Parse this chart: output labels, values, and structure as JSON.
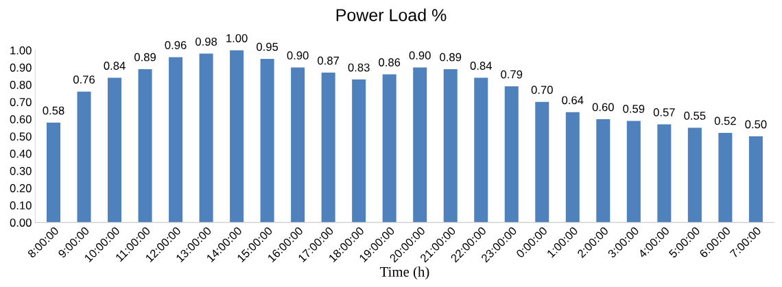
{
  "chart_data": {
    "type": "bar",
    "title": "Power Load %",
    "xlabel": "Time (h)",
    "categories": [
      "8:00:00",
      "9:00:00",
      "10:00:00",
      "11:00:00",
      "12:00:00",
      "13:00:00",
      "14:00:00",
      "15:00:00",
      "16:00:00",
      "17:00:00",
      "18:00:00",
      "19:00:00",
      "20:00:00",
      "21:00:00",
      "22:00:00",
      "23:00:00",
      "0:00:00",
      "1:00:00",
      "2:00:00",
      "3:00:00",
      "4:00:00",
      "5:00:00",
      "6:00:00",
      "7:00:00"
    ],
    "values": [
      0.58,
      0.76,
      0.84,
      0.89,
      0.96,
      0.98,
      1.0,
      0.95,
      0.9,
      0.87,
      0.83,
      0.86,
      0.9,
      0.89,
      0.84,
      0.79,
      0.7,
      0.64,
      0.6,
      0.59,
      0.57,
      0.55,
      0.52,
      0.5
    ],
    "value_labels": [
      "0.58",
      "0.76",
      "0.84",
      "0.89",
      "0.96",
      "0.98",
      "1.00",
      "0.95",
      "0.90",
      "0.87",
      "0.83",
      "0.86",
      "0.90",
      "0.89",
      "0.84",
      "0.79",
      "0.70",
      "0.64",
      "0.60",
      "0.59",
      "0.57",
      "0.55",
      "0.52",
      "0.50"
    ],
    "color": "#4f81bd",
    "ylim": [
      0,
      1.0
    ],
    "yticks": [
      {
        "value": 0,
        "label": "0.00"
      },
      {
        "value": 0.1,
        "label": "0.10"
      },
      {
        "value": 0.2,
        "label": "0.20"
      },
      {
        "value": 0.3,
        "label": "0.30"
      },
      {
        "value": 0.4,
        "label": "0.40"
      },
      {
        "value": 0.5,
        "label": "0.50"
      },
      {
        "value": 0.6,
        "label": "0.60"
      },
      {
        "value": 0.7,
        "label": "0.70"
      },
      {
        "value": 0.8,
        "label": "0.80"
      },
      {
        "value": 0.9,
        "label": "0.90"
      },
      {
        "value": 1.0,
        "label": "1.00"
      }
    ],
    "grid": false,
    "legend": false
  }
}
